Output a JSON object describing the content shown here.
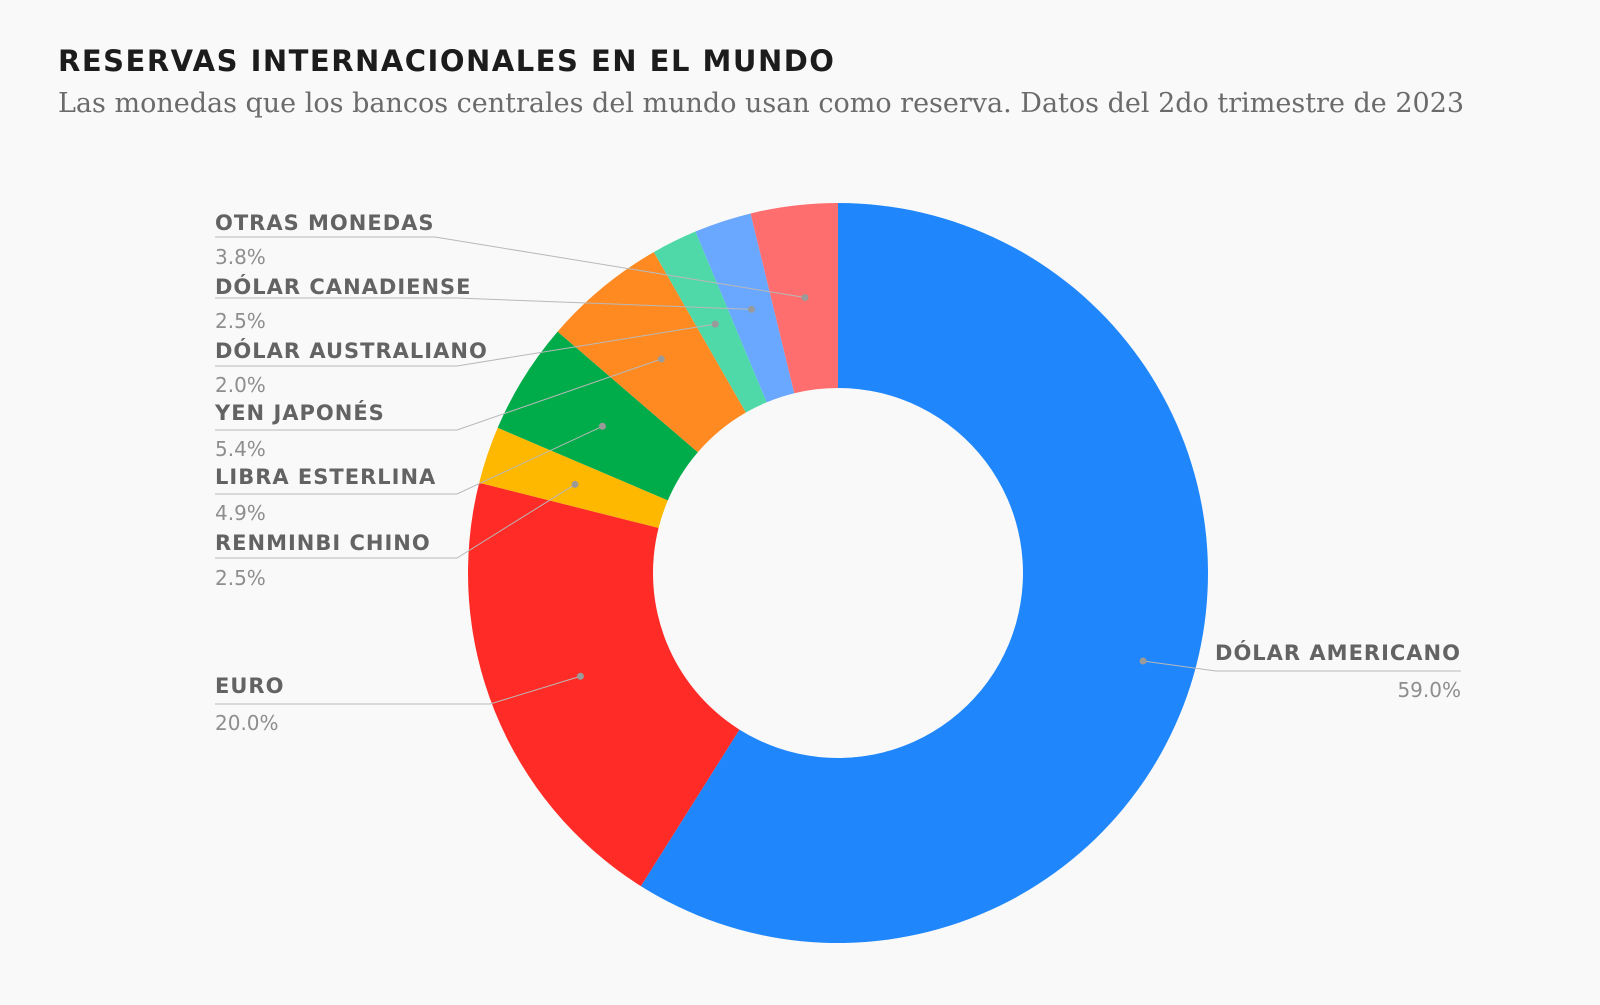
{
  "header": {
    "title": "RESERVAS INTERNACIONALES EN EL MUNDO",
    "subtitle": "Las monedas que los bancos centrales del mundo usan como reserva. Datos del 2do trimestre de 2023"
  },
  "chart_data": {
    "type": "pie",
    "variant": "donut",
    "title": "RESERVAS INTERNACIONALES EN EL MUNDO",
    "subtitle": "Las monedas que los bancos centrales del mundo usan como reserva. Datos del 2do trimestre de 2023",
    "slices": [
      {
        "label": "DÓLAR AMERICANO",
        "value": 59.0,
        "display": "59.0%",
        "color": "#1f87fb"
      },
      {
        "label": "EURO",
        "value": 20.0,
        "display": "20.0%",
        "color": "#ff2b26"
      },
      {
        "label": "RENMINBI CHINO",
        "value": 2.5,
        "display": "2.5%",
        "color": "#ffb800"
      },
      {
        "label": "LIBRA ESTERLINA",
        "value": 4.9,
        "display": "4.9%",
        "color": "#00ab4a"
      },
      {
        "label": "YEN JAPONÉS",
        "value": 5.4,
        "display": "5.4%",
        "color": "#ff8a22"
      },
      {
        "label": "DÓLAR AUSTRALIANO",
        "value": 2.0,
        "display": "2.0%",
        "color": "#4fd8a8"
      },
      {
        "label": "DÓLAR CANADIENSE",
        "value": 2.5,
        "display": "2.5%",
        "color": "#6aa7ff"
      },
      {
        "label": "OTRAS MONEDAS",
        "value": 3.8,
        "display": "3.8%",
        "color": "#ff6e6e"
      }
    ],
    "legend": "none",
    "labels": "outside-with-leader-lines"
  }
}
